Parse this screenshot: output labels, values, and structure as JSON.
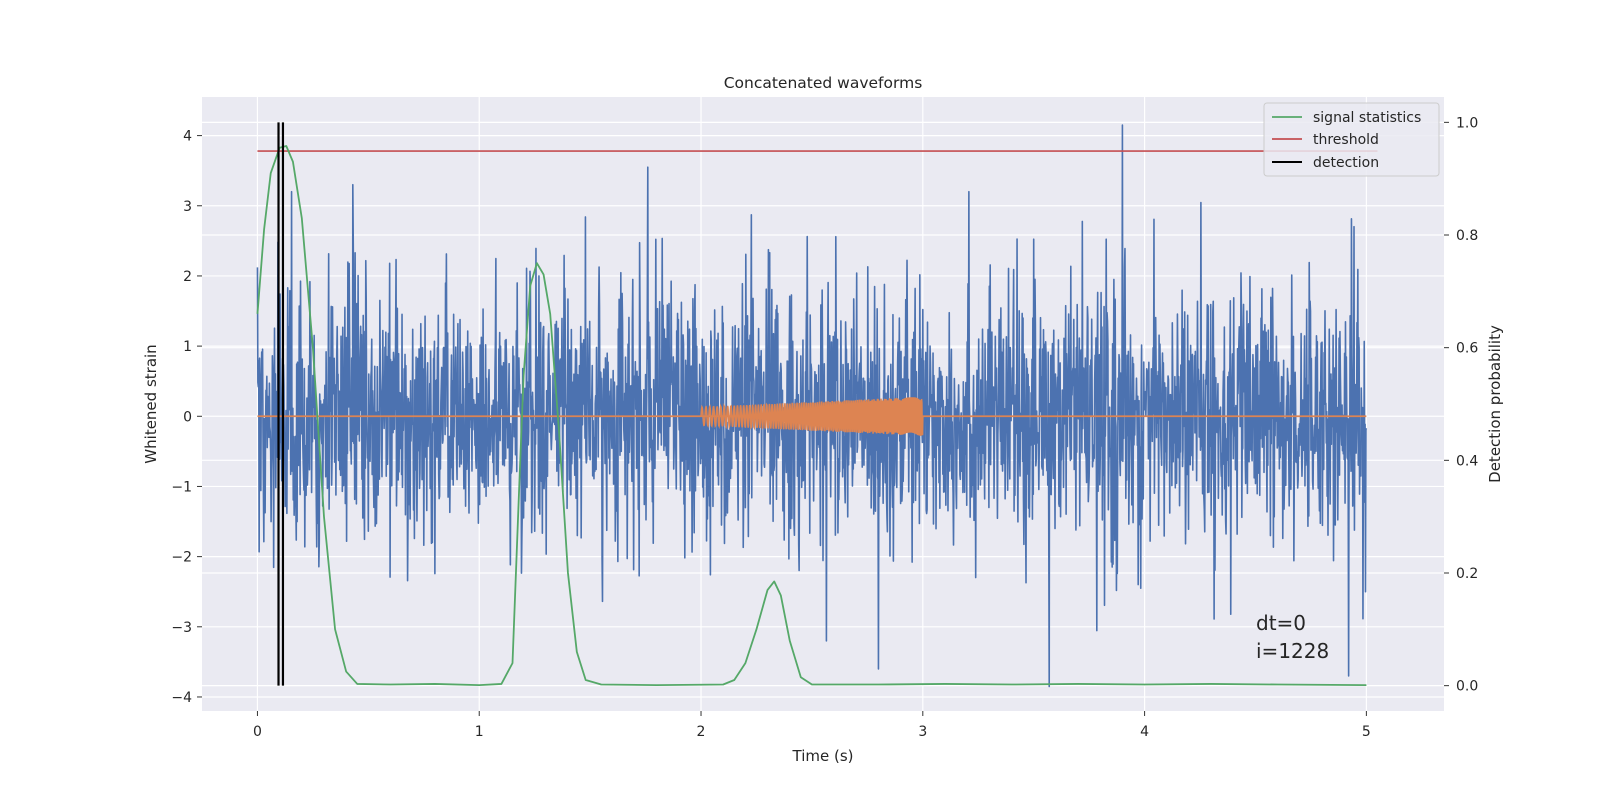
{
  "chart_data": {
    "type": "line",
    "title": "Concatenated waveforms",
    "xlabel": "Time (s)",
    "ylabel": "Whitened strain",
    "ylabel_right": "Detection probability",
    "xlim": [
      -0.25,
      5.35
    ],
    "ylim": [
      -4.2,
      4.55
    ],
    "ylim_right": [
      -0.045,
      1.045
    ],
    "x_ticks": [
      0,
      1,
      2,
      3,
      4,
      5
    ],
    "x_tick_labels": [
      "0",
      "1",
      "2",
      "3",
      "4",
      "5"
    ],
    "y_ticks": [
      -4,
      -3,
      -2,
      -1,
      0,
      1,
      2,
      3,
      4
    ],
    "y_tick_labels": [
      "−4",
      "−3",
      "−2",
      "−1",
      "0",
      "1",
      "2",
      "3",
      "4"
    ],
    "y_right_ticks": [
      0.0,
      0.2,
      0.4,
      0.6,
      0.8,
      1.0
    ],
    "y_right_tick_labels": [
      "0.0",
      "0.2",
      "0.4",
      "0.6",
      "0.8",
      "1.0"
    ],
    "grid": true,
    "legend_position": "top-right",
    "legend": [
      "signal statistics",
      "threshold",
      "detection"
    ],
    "colors": {
      "strain": "#4c72b0",
      "injected": "#dd8452",
      "signal_statistics": "#55a868",
      "threshold": "#c44e52",
      "detection": "#000000",
      "plot_bg": "#eaeaf2",
      "grid": "#ffffff"
    },
    "series": [
      {
        "name": "strain",
        "axis": "left",
        "x_range": [
          0,
          5
        ],
        "typical_range": [
          -2.4,
          2.6
        ],
        "notable_peaks": [
          {
            "x": 3.9,
            "y": 4.15
          },
          {
            "x": 0.43,
            "y": 3.3
          },
          {
            "x": 1.76,
            "y": 3.55
          },
          {
            "x": 3.57,
            "y": -3.85
          },
          {
            "x": 4.92,
            "y": -3.7
          },
          {
            "x": 2.8,
            "y": -3.6
          }
        ]
      },
      {
        "name": "injected waveform",
        "axis": "left",
        "x_range": [
          2.0,
          3.0
        ],
        "amplitude_start": 0.13,
        "amplitude_end": 0.28
      },
      {
        "name": "signal statistics",
        "axis": "right",
        "x": [
          0.0,
          0.03,
          0.06,
          0.1,
          0.13,
          0.16,
          0.2,
          0.25,
          0.3,
          0.35,
          0.4,
          0.45,
          0.6,
          0.8,
          1.0,
          1.1,
          1.15,
          1.18,
          1.2,
          1.23,
          1.26,
          1.29,
          1.32,
          1.36,
          1.4,
          1.44,
          1.48,
          1.55,
          1.8,
          2.1,
          2.15,
          2.2,
          2.25,
          2.3,
          2.33,
          2.36,
          2.4,
          2.45,
          2.5,
          2.8,
          3.1,
          3.4,
          3.7,
          4.0,
          4.3,
          4.6,
          5.0
        ],
        "y": [
          0.66,
          0.81,
          0.91,
          0.955,
          0.958,
          0.93,
          0.83,
          0.6,
          0.3,
          0.1,
          0.025,
          0.003,
          0.002,
          0.003,
          0.001,
          0.003,
          0.04,
          0.35,
          0.55,
          0.71,
          0.75,
          0.73,
          0.66,
          0.45,
          0.2,
          0.06,
          0.01,
          0.002,
          0.001,
          0.002,
          0.01,
          0.04,
          0.1,
          0.17,
          0.185,
          0.16,
          0.08,
          0.015,
          0.002,
          0.002,
          0.003,
          0.002,
          0.003,
          0.002,
          0.003,
          0.002,
          0.001
        ]
      },
      {
        "name": "threshold",
        "axis": "left",
        "x": [
          0,
          5.05
        ],
        "y": [
          3.78,
          3.78
        ]
      },
      {
        "name": "detection",
        "axis": "right",
        "x": [
          0.095,
          0.115
        ],
        "y_range": [
          0,
          1.0
        ]
      }
    ],
    "annotations": [
      "dt=0",
      "i=1228"
    ]
  }
}
